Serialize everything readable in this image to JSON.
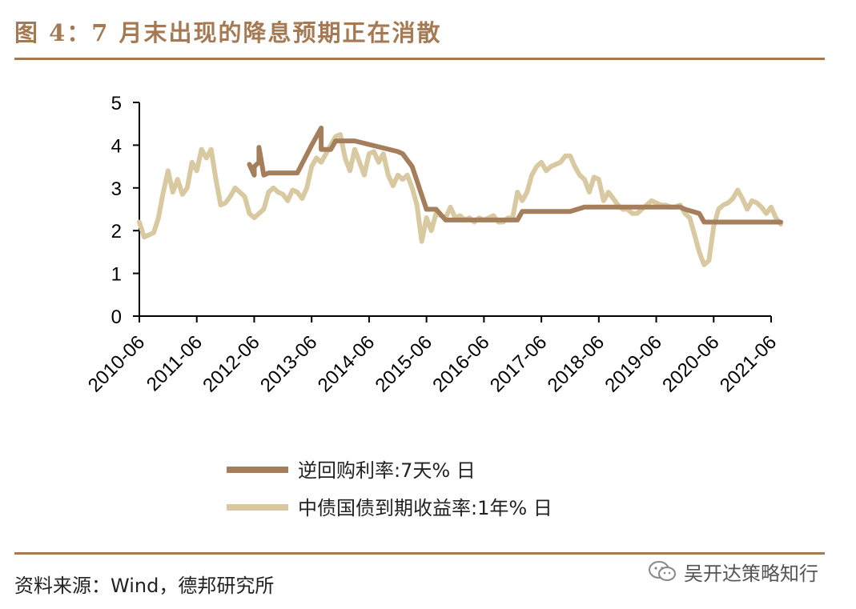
{
  "figure": {
    "title": "图 4：7 月末出现的降息预期正在消散",
    "source": "资料来源：Wind，德邦研究所",
    "watermark": "吴开达策略知行"
  },
  "chart_data": {
    "type": "line",
    "ylim": [
      0,
      5
    ],
    "y_ticks": [
      "0",
      "1",
      "2",
      "3",
      "4",
      "5"
    ],
    "x_ticks": [
      "2010-06",
      "2011-06",
      "2012-06",
      "2013-06",
      "2014-06",
      "2015-06",
      "2016-06",
      "2017-06",
      "2018-06",
      "2019-06",
      "2020-06",
      "2021-06"
    ],
    "grid": false,
    "legend_position": "bottom",
    "series": [
      {
        "name": "逆回购利率:7天% 日",
        "color": "#a57e5b",
        "points": [
          [
            "2012-05",
            3.55
          ],
          [
            "2012-06",
            3.3
          ],
          [
            "2012-06",
            3.5
          ],
          [
            "2012-07",
            3.6
          ],
          [
            "2012-07",
            3.95
          ],
          [
            "2012-08",
            3.3
          ],
          [
            "2012-09",
            3.35
          ],
          [
            "2013-03",
            3.35
          ],
          [
            "2013-06",
            4.0
          ],
          [
            "2013-08",
            4.4
          ],
          [
            "2013-08",
            3.9
          ],
          [
            "2013-10",
            3.9
          ],
          [
            "2013-11",
            4.1
          ],
          [
            "2014-03",
            4.1
          ],
          [
            "2014-12",
            3.85
          ],
          [
            "2015-01",
            3.8
          ],
          [
            "2015-03",
            3.5
          ],
          [
            "2015-06",
            2.5
          ],
          [
            "2015-08",
            2.5
          ],
          [
            "2015-10",
            2.25
          ],
          [
            "2017-01",
            2.25
          ],
          [
            "2017-02",
            2.45
          ],
          [
            "2017-12",
            2.45
          ],
          [
            "2018-03",
            2.55
          ],
          [
            "2019-11",
            2.55
          ],
          [
            "2019-12",
            2.5
          ],
          [
            "2020-03",
            2.4
          ],
          [
            "2020-04",
            2.2
          ],
          [
            "2021-08",
            2.2
          ]
        ]
      },
      {
        "name": "中债国债到期收益率:1年% 日",
        "color": "#d8c9a1",
        "points": [
          [
            "2010-06",
            2.2
          ],
          [
            "2010-07",
            1.85
          ],
          [
            "2010-08",
            1.9
          ],
          [
            "2010-09",
            1.95
          ],
          [
            "2010-10",
            2.3
          ],
          [
            "2010-11",
            2.9
          ],
          [
            "2010-12",
            3.4
          ],
          [
            "2011-01",
            2.9
          ],
          [
            "2011-02",
            3.2
          ],
          [
            "2011-03",
            2.85
          ],
          [
            "2011-04",
            3.0
          ],
          [
            "2011-05",
            3.6
          ],
          [
            "2011-06",
            3.4
          ],
          [
            "2011-07",
            3.9
          ],
          [
            "2011-08",
            3.7
          ],
          [
            "2011-09",
            3.9
          ],
          [
            "2011-10",
            3.2
          ],
          [
            "2011-11",
            2.6
          ],
          [
            "2011-12",
            2.65
          ],
          [
            "2012-01",
            2.8
          ],
          [
            "2012-02",
            3.0
          ],
          [
            "2012-03",
            2.9
          ],
          [
            "2012-04",
            2.8
          ],
          [
            "2012-05",
            2.4
          ],
          [
            "2012-06",
            2.3
          ],
          [
            "2012-07",
            2.4
          ],
          [
            "2012-08",
            2.5
          ],
          [
            "2012-09",
            2.9
          ],
          [
            "2012-10",
            3.0
          ],
          [
            "2012-11",
            2.9
          ],
          [
            "2012-12",
            2.85
          ],
          [
            "2013-01",
            2.7
          ],
          [
            "2013-02",
            2.95
          ],
          [
            "2013-03",
            2.9
          ],
          [
            "2013-04",
            2.75
          ],
          [
            "2013-05",
            3.0
          ],
          [
            "2013-06",
            3.5
          ],
          [
            "2013-07",
            3.7
          ],
          [
            "2013-08",
            3.6
          ],
          [
            "2013-09",
            3.8
          ],
          [
            "2013-10",
            4.0
          ],
          [
            "2013-11",
            4.2
          ],
          [
            "2013-12",
            4.25
          ],
          [
            "2014-01",
            3.7
          ],
          [
            "2014-02",
            3.4
          ],
          [
            "2014-03",
            3.9
          ],
          [
            "2014-04",
            3.6
          ],
          [
            "2014-05",
            3.3
          ],
          [
            "2014-06",
            3.8
          ],
          [
            "2014-07",
            3.85
          ],
          [
            "2014-08",
            3.6
          ],
          [
            "2014-09",
            3.8
          ],
          [
            "2014-10",
            3.3
          ],
          [
            "2014-11",
            3.05
          ],
          [
            "2014-12",
            3.3
          ],
          [
            "2015-01",
            3.2
          ],
          [
            "2015-02",
            3.3
          ],
          [
            "2015-03",
            3.0
          ],
          [
            "2015-04",
            2.6
          ],
          [
            "2015-05",
            1.75
          ],
          [
            "2015-06",
            2.3
          ],
          [
            "2015-07",
            2.0
          ],
          [
            "2015-08",
            2.4
          ],
          [
            "2015-09",
            2.35
          ],
          [
            "2015-10",
            2.3
          ],
          [
            "2015-11",
            2.55
          ],
          [
            "2015-12",
            2.3
          ],
          [
            "2016-01",
            2.35
          ],
          [
            "2016-02",
            2.25
          ],
          [
            "2016-03",
            2.3
          ],
          [
            "2016-04",
            2.2
          ],
          [
            "2016-05",
            2.3
          ],
          [
            "2016-06",
            2.25
          ],
          [
            "2016-07",
            2.3
          ],
          [
            "2016-08",
            2.35
          ],
          [
            "2016-09",
            2.2
          ],
          [
            "2016-10",
            2.2
          ],
          [
            "2016-11",
            2.3
          ],
          [
            "2016-12",
            2.3
          ],
          [
            "2017-01",
            2.9
          ],
          [
            "2017-02",
            2.7
          ],
          [
            "2017-03",
            2.9
          ],
          [
            "2017-04",
            3.3
          ],
          [
            "2017-05",
            3.5
          ],
          [
            "2017-06",
            3.6
          ],
          [
            "2017-07",
            3.4
          ],
          [
            "2017-08",
            3.5
          ],
          [
            "2017-09",
            3.55
          ],
          [
            "2017-10",
            3.6
          ],
          [
            "2017-11",
            3.75
          ],
          [
            "2017-12",
            3.75
          ],
          [
            "2018-01",
            3.5
          ],
          [
            "2018-02",
            3.3
          ],
          [
            "2018-03",
            3.2
          ],
          [
            "2018-04",
            2.9
          ],
          [
            "2018-05",
            3.25
          ],
          [
            "2018-06",
            3.2
          ],
          [
            "2018-07",
            2.7
          ],
          [
            "2018-08",
            2.9
          ],
          [
            "2018-09",
            2.75
          ],
          [
            "2018-10",
            2.6
          ],
          [
            "2018-11",
            2.5
          ],
          [
            "2018-12",
            2.5
          ],
          [
            "2019-01",
            2.4
          ],
          [
            "2019-02",
            2.4
          ],
          [
            "2019-03",
            2.5
          ],
          [
            "2019-04",
            2.6
          ],
          [
            "2019-05",
            2.7
          ],
          [
            "2019-06",
            2.65
          ],
          [
            "2019-07",
            2.6
          ],
          [
            "2019-08",
            2.6
          ],
          [
            "2019-09",
            2.55
          ],
          [
            "2019-10",
            2.55
          ],
          [
            "2019-11",
            2.6
          ],
          [
            "2019-12",
            2.4
          ],
          [
            "2020-01",
            2.3
          ],
          [
            "2020-02",
            1.9
          ],
          [
            "2020-03",
            1.5
          ],
          [
            "2020-04",
            1.2
          ],
          [
            "2020-05",
            1.3
          ],
          [
            "2020-06",
            2.1
          ],
          [
            "2020-07",
            2.5
          ],
          [
            "2020-08",
            2.6
          ],
          [
            "2020-09",
            2.65
          ],
          [
            "2020-10",
            2.75
          ],
          [
            "2020-11",
            2.95
          ],
          [
            "2020-12",
            2.75
          ],
          [
            "2021-01",
            2.5
          ],
          [
            "2021-02",
            2.7
          ],
          [
            "2021-03",
            2.65
          ],
          [
            "2021-04",
            2.55
          ],
          [
            "2021-05",
            2.4
          ],
          [
            "2021-06",
            2.55
          ],
          [
            "2021-07",
            2.3
          ],
          [
            "2021-08",
            2.15
          ]
        ]
      }
    ]
  }
}
